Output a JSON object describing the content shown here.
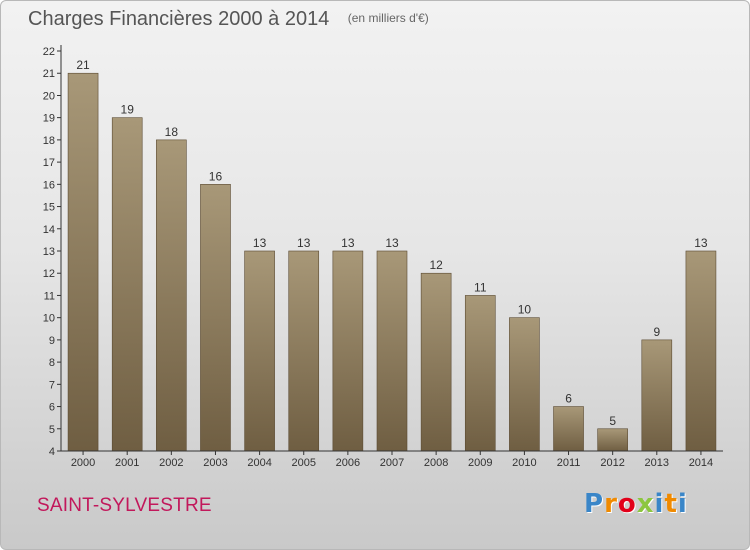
{
  "header": {
    "title": "Charges Financières 2000 à 2014",
    "subtitle": "(en milliers d'€)"
  },
  "footer": {
    "commune": "SAINT-SYLVESTRE",
    "logo": "Proxiti"
  },
  "colors": {
    "bar_top": "#a89878",
    "bar_bottom": "#6f5e42",
    "bar_border": "#5a4a32",
    "axis": "#333333",
    "commune_text": "#c2185b"
  },
  "chart_data": {
    "type": "bar",
    "title": "Charges Financières 2000 à 2014",
    "subtitle": "(en milliers d'€)",
    "categories": [
      "2000",
      "2001",
      "2002",
      "2003",
      "2004",
      "2005",
      "2006",
      "2007",
      "2008",
      "2009",
      "2010",
      "2011",
      "2012",
      "2013",
      "2014"
    ],
    "values": [
      21,
      19,
      18,
      16,
      13,
      13,
      13,
      13,
      12,
      11,
      10,
      6,
      5,
      9,
      13
    ],
    "ylim": [
      4,
      22
    ],
    "yticks": [
      4,
      5,
      6,
      7,
      8,
      9,
      10,
      11,
      12,
      13,
      14,
      15,
      16,
      17,
      18,
      19,
      20,
      21,
      22
    ],
    "grid": false,
    "data_labels": true
  }
}
